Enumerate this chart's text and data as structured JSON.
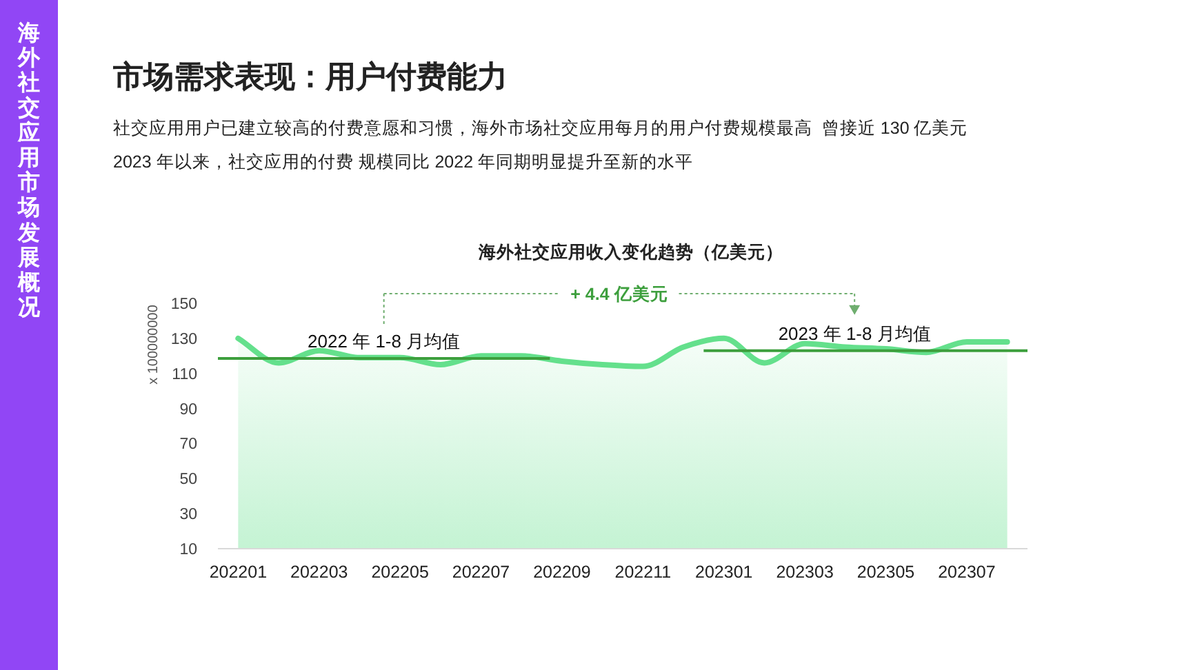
{
  "chart_data": {
    "type": "area",
    "title": "市场需求表现：用户付费能力",
    "subtitle": "社交应用用户已建立较高的付费意愿和习惯，海外市场社交应用每月的用户付费规模最高  曾接近 130 亿美元\n2023 年以来，社交应用的付费 规模同比 2022 年同期明显提升至新的水平",
    "ylabel": "x 100000000",
    "annotations": [
      "海外社交应用收入变化趋势（亿美元）",
      "+ 4.4 亿美元",
      "海外社交应用市场发展概况"
    ],
    "categories": [
      "202201",
      null,
      "202203",
      null,
      "202205",
      null,
      "202207",
      null,
      "202209",
      null,
      "202211",
      null,
      "202301",
      null,
      "202303",
      null,
      "202305",
      null,
      "202307",
      null
    ],
    "series": [
      {
        "color": "#64e08c",
        "values": [
          130,
          116,
          123,
          119,
          119,
          115,
          120,
          120,
          117,
          115,
          114,
          125,
          130,
          116,
          127,
          125,
          124,
          122,
          128,
          128
        ]
      }
    ],
    "ylim": [
      10,
      150
    ],
    "yticks": [
      10,
      30,
      50,
      70,
      90,
      110,
      130,
      150
    ],
    "ref_lines": [
      {
        "axis": "y",
        "value": 118.5,
        "label": "2022 年 1-8 月均值",
        "color": "#3d9f3d"
      },
      {
        "axis": "y",
        "value": 123,
        "label": "2023 年 1-8 月均值",
        "color": "#3d9f3d"
      }
    ]
  }
}
